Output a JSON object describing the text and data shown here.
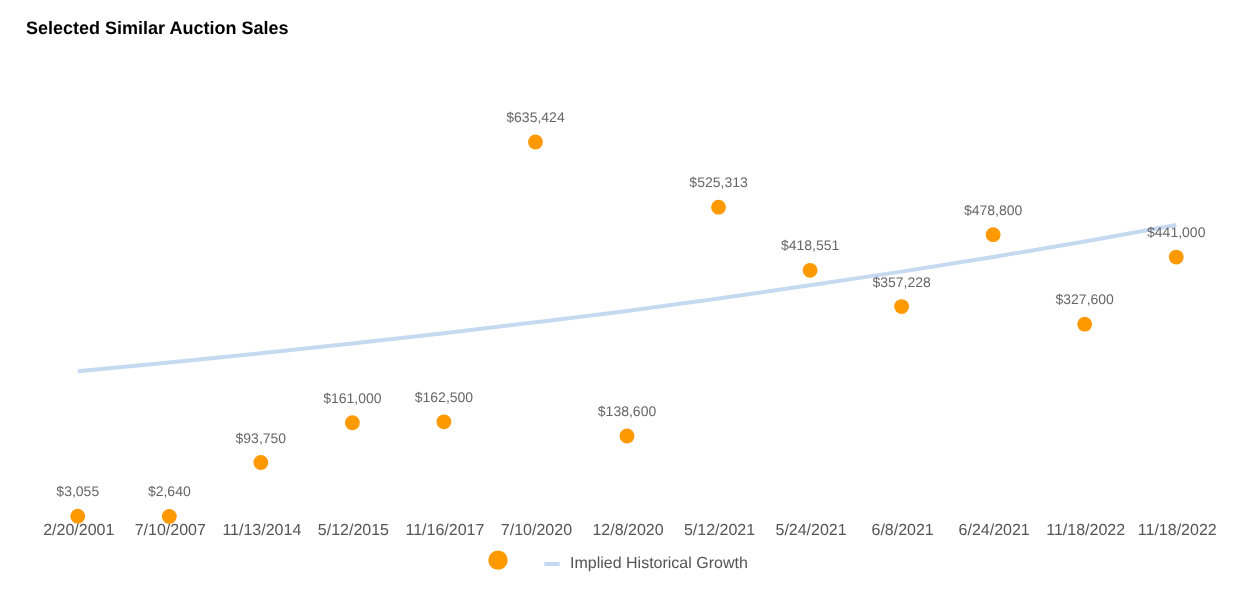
{
  "chart_data": {
    "type": "scatter",
    "title": "Selected Similar Auction Sales",
    "categories": [
      "2/20/2001",
      "7/10/2007",
      "11/13/2014",
      "5/12/2015",
      "11/16/2017",
      "7/10/2020",
      "12/8/2020",
      "5/12/2021",
      "5/24/2021",
      "6/8/2021",
      "6/24/2021",
      "11/18/2022",
      "11/18/2022"
    ],
    "series": [
      {
        "color": "#ff9900",
        "marker": "circle",
        "values": [
          3055,
          2640,
          93750,
          161000,
          162500,
          635424,
          138600,
          525313,
          418551,
          357228,
          478800,
          327600,
          441000
        ],
        "value_labels": [
          "$3,055",
          "$2,640",
          "$93,750",
          "$161,000",
          "$162,500",
          "$635,424",
          "$138,600",
          "$525,313",
          "$418,551",
          "$357,228",
          "$478,800",
          "$327,600",
          "$441,000"
        ]
      },
      {
        "type": "line",
        "name": "Implied Historical Growth",
        "color": "#c5d9f1",
        "values": [
          248000,
          262700,
          278300,
          295000,
          312300,
          330800,
          350000,
          371000,
          393200,
          416400,
          441000,
          467300,
          495300
        ]
      }
    ],
    "grid": false,
    "legend": "bottom"
  }
}
